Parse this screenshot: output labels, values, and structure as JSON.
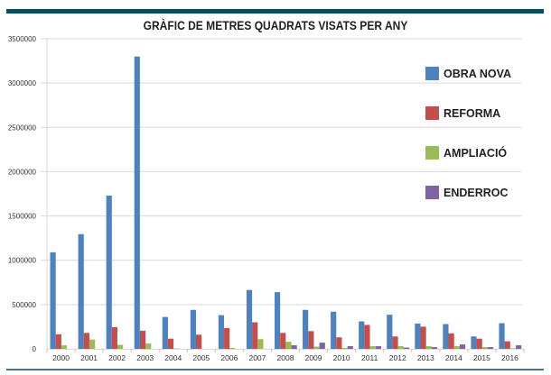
{
  "header": {
    "title": "GRÀFIC DE METRES QUADRATS VISATS PER ANY",
    "bar_color": "#0b4a63"
  },
  "chart_data": {
    "type": "bar",
    "title": "GRÀFIC DE METRES QUADRATS VISATS PER ANY",
    "xlabel": "",
    "ylabel": "",
    "ylim": [
      0,
      3500000
    ],
    "yticks": [
      0,
      500000,
      1000000,
      1500000,
      2000000,
      2500000,
      3000000,
      3500000
    ],
    "ytick_labels": [
      "0",
      "500000",
      "1000000",
      "1500000",
      "2000000",
      "2500000",
      "3000000",
      "3500000"
    ],
    "grid": true,
    "legend_position": "right",
    "categories": [
      "2000",
      "2001",
      "2002",
      "2003",
      "2004",
      "2005",
      "2006",
      "2007",
      "2008",
      "2009",
      "2010",
      "2011",
      "2012",
      "2013",
      "2014",
      "2015",
      "2016"
    ],
    "series": [
      {
        "name": "OBRA NOVA",
        "color": "#4f81bd",
        "values": [
          1090000,
          1295000,
          1730000,
          3300000,
          360000,
          440000,
          380000,
          665000,
          640000,
          440000,
          420000,
          310000,
          385000,
          285000,
          280000,
          140000,
          290000
        ]
      },
      {
        "name": "REFORMA",
        "color": "#c0504d",
        "values": [
          165000,
          180000,
          245000,
          205000,
          115000,
          160000,
          235000,
          300000,
          180000,
          200000,
          130000,
          270000,
          140000,
          250000,
          175000,
          115000,
          85000
        ]
      },
      {
        "name": "AMPLIACIÓ",
        "color": "#9bbb59",
        "values": [
          40000,
          105000,
          45000,
          60000,
          5000,
          0,
          10000,
          110000,
          80000,
          25000,
          10000,
          30000,
          30000,
          30000,
          30000,
          20000,
          5000
        ]
      },
      {
        "name": "ENDERROC",
        "color": "#8064a2",
        "values": [
          0,
          0,
          0,
          0,
          0,
          0,
          0,
          0,
          40000,
          70000,
          30000,
          30000,
          15000,
          20000,
          50000,
          20000,
          40000
        ]
      }
    ]
  },
  "legend": {
    "items": [
      {
        "label": "OBRA NOVA",
        "color": "#4f81bd"
      },
      {
        "label": "REFORMA",
        "color": "#c0504d"
      },
      {
        "label": "AMPLIACIÓ",
        "color": "#9bbb59"
      },
      {
        "label": "ENDERROC",
        "color": "#8064a2"
      }
    ]
  }
}
